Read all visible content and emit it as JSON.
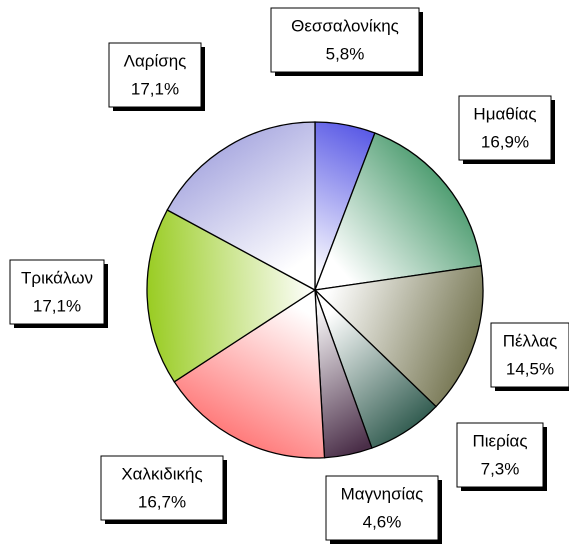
{
  "chart_data": {
    "type": "pie",
    "categories": [
      "Θεσσαλονίκης",
      "Ημαθίας",
      "Πέλλας",
      "Πιερίας",
      "Μαγνησίας",
      "Χαλκιδικής",
      "Τρικάλων",
      "Λαρίσης"
    ],
    "values": [
      5.8,
      16.9,
      14.5,
      7.3,
      4.6,
      16.7,
      17.1,
      17.1
    ],
    "value_labels": [
      "5,8%",
      "16,9%",
      "14,5%",
      "7,3%",
      "4,6%",
      "16,7%",
      "17,1%",
      "17,1%"
    ],
    "colors": [
      "#5c5ce6",
      "#2e8b57",
      "#6e6e48",
      "#2f5a4e",
      "#4a2e48",
      "#ff6a6a",
      "#99cc22",
      "#a0a0dd"
    ]
  }
}
